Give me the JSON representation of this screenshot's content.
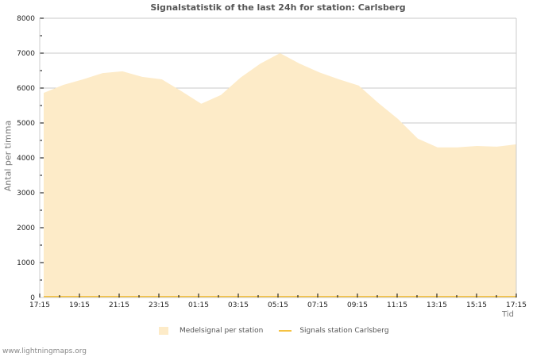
{
  "title": "Signalstatistik of the last 24h for station: Carlsberg",
  "footer": "www.lightningmaps.org",
  "colors": {
    "area": "#fdebc8",
    "line": "#f5c242",
    "grid": "#c8c8c8",
    "axis": "#cccccc"
  },
  "chart_data": {
    "type": "area",
    "title": "Signalstatistik of the last 24h for station: Carlsberg",
    "xlabel": "Tid",
    "ylabel": "Antal per timma",
    "ylim": [
      0,
      8000
    ],
    "yticks": [
      0,
      1000,
      2000,
      3000,
      4000,
      5000,
      6000,
      7000,
      8000
    ],
    "xticks": [
      "17:15",
      "19:15",
      "21:15",
      "23:15",
      "01:15",
      "03:15",
      "05:15",
      "07:15",
      "09:15",
      "11:15",
      "13:15",
      "15:15",
      "17:15"
    ],
    "grid": true,
    "legend_position": "bottom",
    "x": [
      "17:15",
      "18:15",
      "19:15",
      "20:15",
      "21:15",
      "22:15",
      "23:15",
      "00:15",
      "01:15",
      "02:15",
      "03:15",
      "04:15",
      "05:15",
      "06:15",
      "07:15",
      "08:15",
      "09:15",
      "10:15",
      "11:15",
      "12:15",
      "13:15",
      "14:15",
      "15:15",
      "16:15",
      "17:15"
    ],
    "series": [
      {
        "name": "Medelsignal per station",
        "type": "area",
        "values": [
          5860,
          6090,
          6250,
          6430,
          6480,
          6320,
          6250,
          5910,
          5550,
          5800,
          6300,
          6700,
          7000,
          6700,
          6450,
          6250,
          6070,
          5570,
          5110,
          4550,
          4300,
          4300,
          4340,
          4320,
          4390
        ]
      },
      {
        "name": "Signals station Carlsberg",
        "type": "line",
        "values": [
          0,
          0,
          0,
          0,
          0,
          0,
          0,
          0,
          0,
          0,
          0,
          0,
          0,
          0,
          0,
          0,
          0,
          0,
          0,
          0,
          0,
          0,
          0,
          0,
          0
        ]
      }
    ]
  },
  "legend": [
    {
      "label": "Medelsignal per station"
    },
    {
      "label": "Signals station Carlsberg"
    }
  ]
}
